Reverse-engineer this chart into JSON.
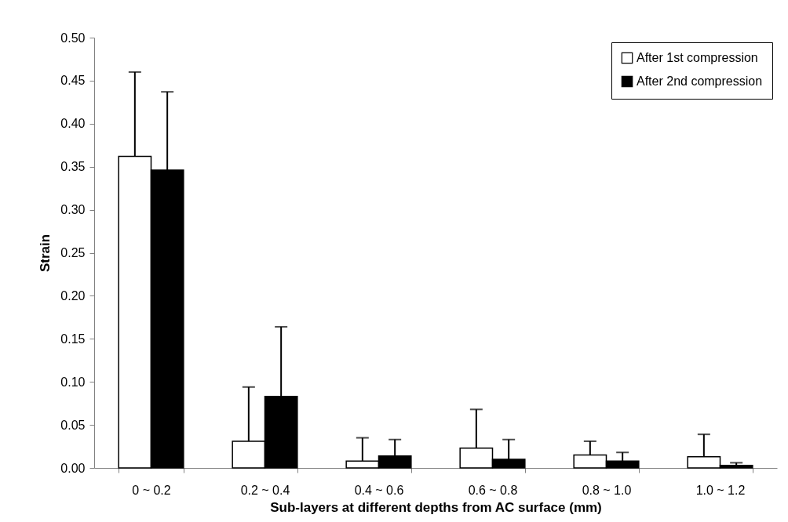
{
  "chart_data": {
    "type": "bar",
    "xlabel": "Sub-layers at different depths from AC surface (mm)",
    "ylabel": "Strain",
    "categories": [
      "0 ~ 0.2",
      "0.2 ~ 0.4",
      "0.4 ~ 0.6",
      "0.6 ~ 0.8",
      "0.8 ~ 1.0",
      "1.0 ~ 1.2"
    ],
    "series": [
      {
        "name": "After 1st compression",
        "color": "#ffffff",
        "values": [
          0.362,
          0.031,
          0.008,
          0.023,
          0.015,
          0.013
        ],
        "errors": [
          [
            0.362,
            0.46
          ],
          [
            0.031,
            0.094
          ],
          [
            0.008,
            0.035
          ],
          [
            0.023,
            0.068
          ],
          [
            0.015,
            0.031
          ],
          [
            0.013,
            0.039
          ]
        ]
      },
      {
        "name": "After 2nd compression",
        "color": "#000000",
        "values": [
          0.346,
          0.083,
          0.014,
          0.01,
          0.008,
          0.003
        ],
        "errors": [
          [
            0.346,
            0.437
          ],
          [
            0.083,
            0.164
          ],
          [
            0.014,
            0.033
          ],
          [
            0.01,
            0.033
          ],
          [
            0.008,
            0.018
          ],
          [
            0.003,
            0.006
          ]
        ]
      }
    ],
    "ylim": [
      0,
      0.5
    ],
    "yticks": [
      {
        "value": 0,
        "label": "0.00"
      },
      0.05,
      {
        "value": 0.1,
        "label": "0.10"
      },
      0.15,
      {
        "value": 0.2,
        "label": "0.20"
      },
      0.25,
      {
        "value": 0.3,
        "label": "0.30"
      },
      0.35,
      {
        "value": 0.4,
        "label": "0.40"
      },
      0.45,
      {
        "value": 0.5,
        "label": "0.50"
      }
    ],
    "grid": false,
    "legend": "top right"
  }
}
